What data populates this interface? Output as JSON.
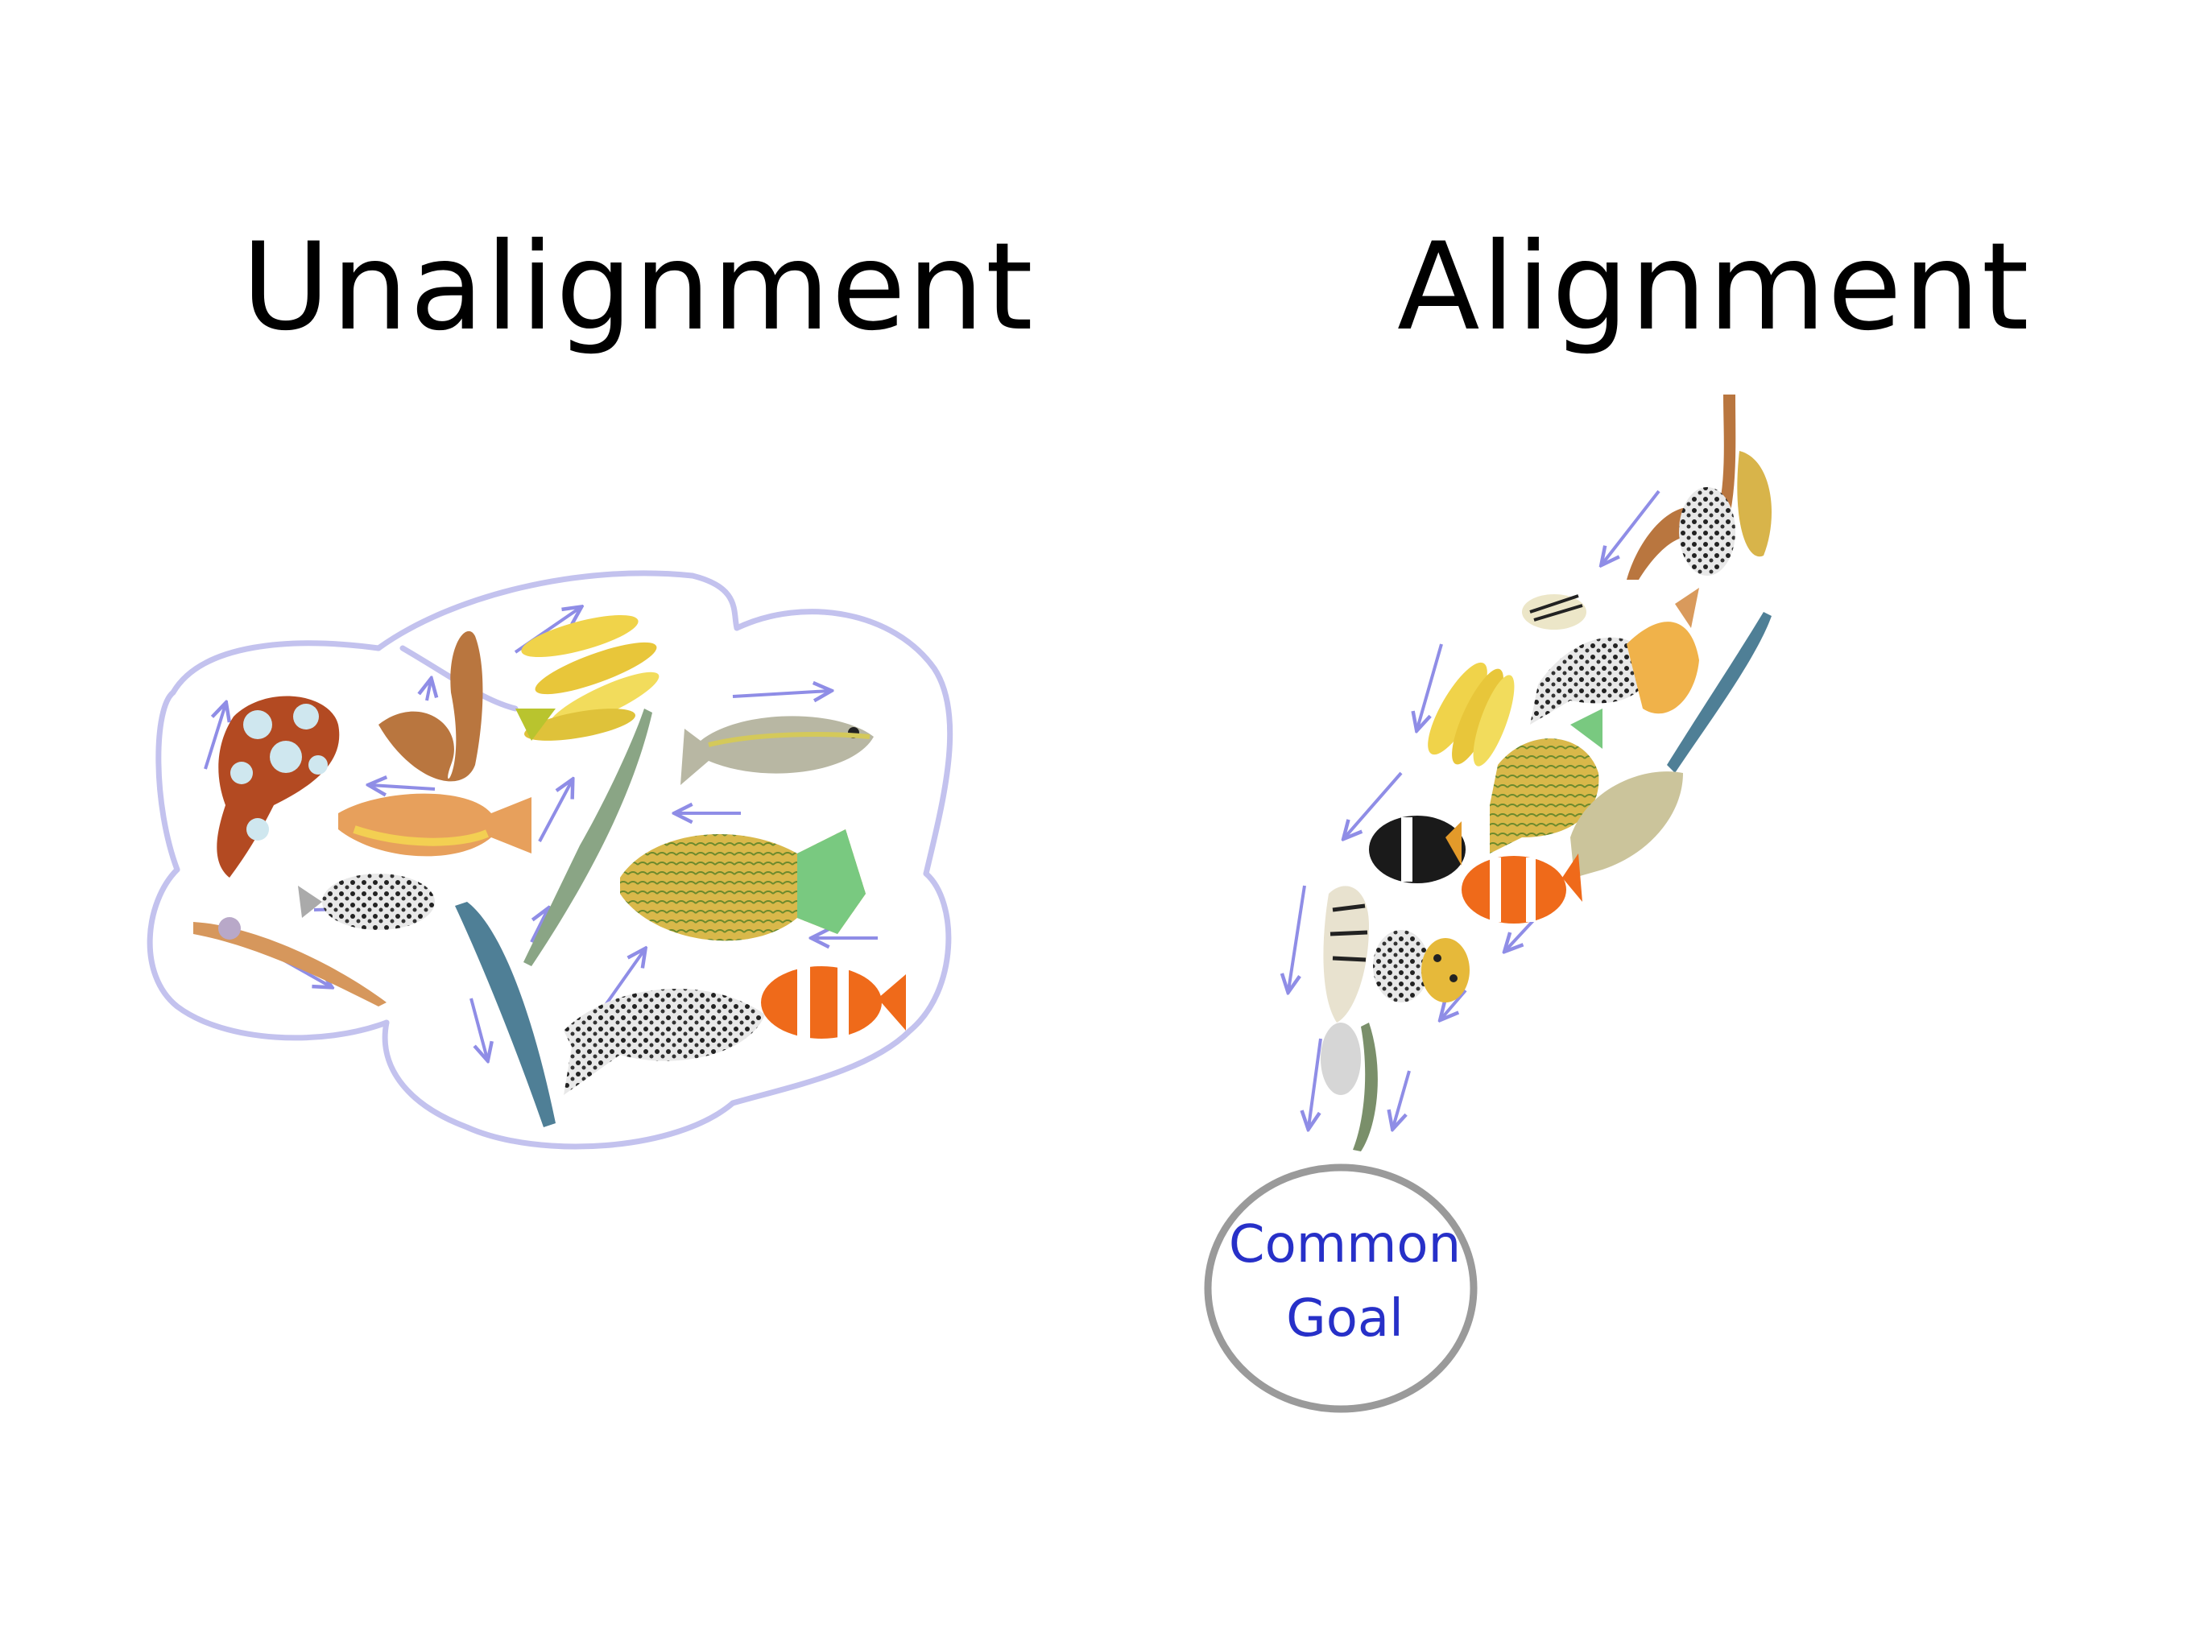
{
  "left_panel": {
    "title": "Unalignment"
  },
  "right_panel": {
    "title": "Alignment"
  },
  "goal": {
    "line1": "Common",
    "line2": "Goal"
  },
  "colors": {
    "cloud_outline": "#c3c2ee",
    "arrow": "#8f8de6",
    "goal_circle": "#9a9a9a",
    "goal_text": "#2730c8"
  },
  "fish_icons": [
    "clownfish-icon",
    "trumpetfish-icon",
    "goldfish-icon",
    "triggerfish-icon",
    "barracuda-icon",
    "pufferfish-icon",
    "grouper-icon",
    "eel-icon",
    "sweetlips-icon",
    "butterflyfish-icon",
    "wrasse-icon",
    "rabbitfish-icon"
  ]
}
